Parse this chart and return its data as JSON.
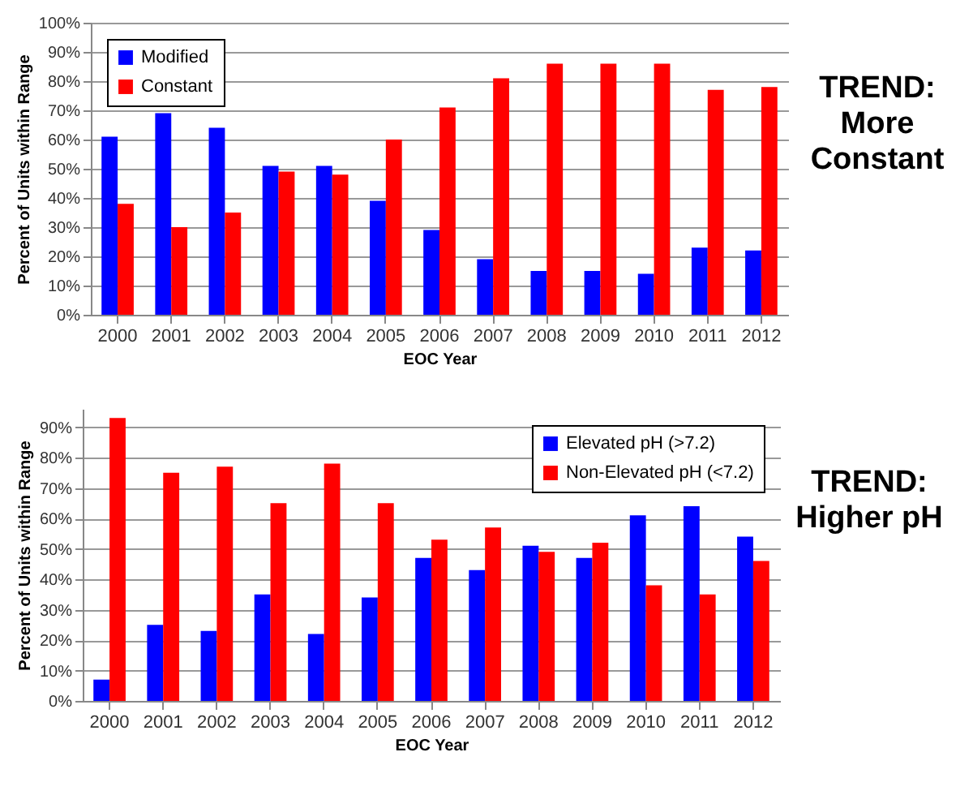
{
  "chart_data": [
    {
      "type": "bar",
      "xlabel": "EOC Year",
      "ylabel": "Percent of Units within Range",
      "annotations": [
        "TREND: More Constant"
      ],
      "categories": [
        "2000",
        "2001",
        "2002",
        "2003",
        "2004",
        "2005",
        "2006",
        "2007",
        "2008",
        "2009",
        "2010",
        "2011",
        "2012"
      ],
      "series": [
        {
          "name": "Modified",
          "color": "#0000ff",
          "values": [
            61,
            69,
            64,
            51,
            51,
            39,
            29,
            19,
            15,
            15,
            14,
            23,
            22
          ]
        },
        {
          "name": "Constant",
          "color": "#ff0000",
          "values": [
            38,
            30,
            35,
            49,
            48,
            60,
            71,
            81,
            86,
            86,
            86,
            77,
            78
          ]
        }
      ],
      "ylim": [
        0,
        100
      ],
      "yticks": [
        {
          "value": 0,
          "label": "0%"
        },
        {
          "value": 10,
          "label": "10%"
        },
        {
          "value": 20,
          "label": "20%"
        },
        {
          "value": 30,
          "label": "30%"
        },
        {
          "value": 40,
          "label": "40%"
        },
        {
          "value": 50,
          "label": "50%"
        },
        {
          "value": 60,
          "label": "60%"
        },
        {
          "value": 70,
          "label": "70%"
        },
        {
          "value": 80,
          "label": "80%"
        },
        {
          "value": 90,
          "label": "90%"
        },
        {
          "value": 100,
          "label": "100%"
        }
      ],
      "grid": "y",
      "legend": "top left"
    },
    {
      "type": "bar",
      "xlabel": "EOC Year",
      "ylabel": "Percent of Units within Range",
      "annotations": [
        "TREND: Higher pH"
      ],
      "categories": [
        "2000",
        "2001",
        "2002",
        "2003",
        "2004",
        "2005",
        "2006",
        "2007",
        "2008",
        "2009",
        "2010",
        "2011",
        "2012"
      ],
      "series": [
        {
          "name": "Elevated pH (>7.2)",
          "color": "#0000ff",
          "values": [
            7,
            25,
            23,
            35,
            22,
            34,
            47,
            43,
            51,
            47,
            61,
            64,
            54
          ]
        },
        {
          "name": "Non-Elevated pH (<7.2)",
          "color": "#ff0000",
          "values": [
            93,
            75,
            77,
            65,
            78,
            65,
            53,
            57,
            49,
            52,
            38,
            35,
            46
          ]
        }
      ],
      "ylim": [
        0,
        96
      ],
      "yticks": [
        {
          "value": 0,
          "label": "0%"
        },
        {
          "value": 10,
          "label": "10%"
        },
        {
          "value": 20,
          "label": "20%"
        },
        {
          "value": 30,
          "label": "30%"
        },
        {
          "value": 40,
          "label": "40%"
        },
        {
          "value": 50,
          "label": "50%"
        },
        {
          "value": 60,
          "label": "60%"
        },
        {
          "value": 70,
          "label": "70%"
        },
        {
          "value": 80,
          "label": "80%"
        },
        {
          "value": 90,
          "label": "90%"
        }
      ],
      "grid": "y",
      "legend": "top right"
    }
  ]
}
